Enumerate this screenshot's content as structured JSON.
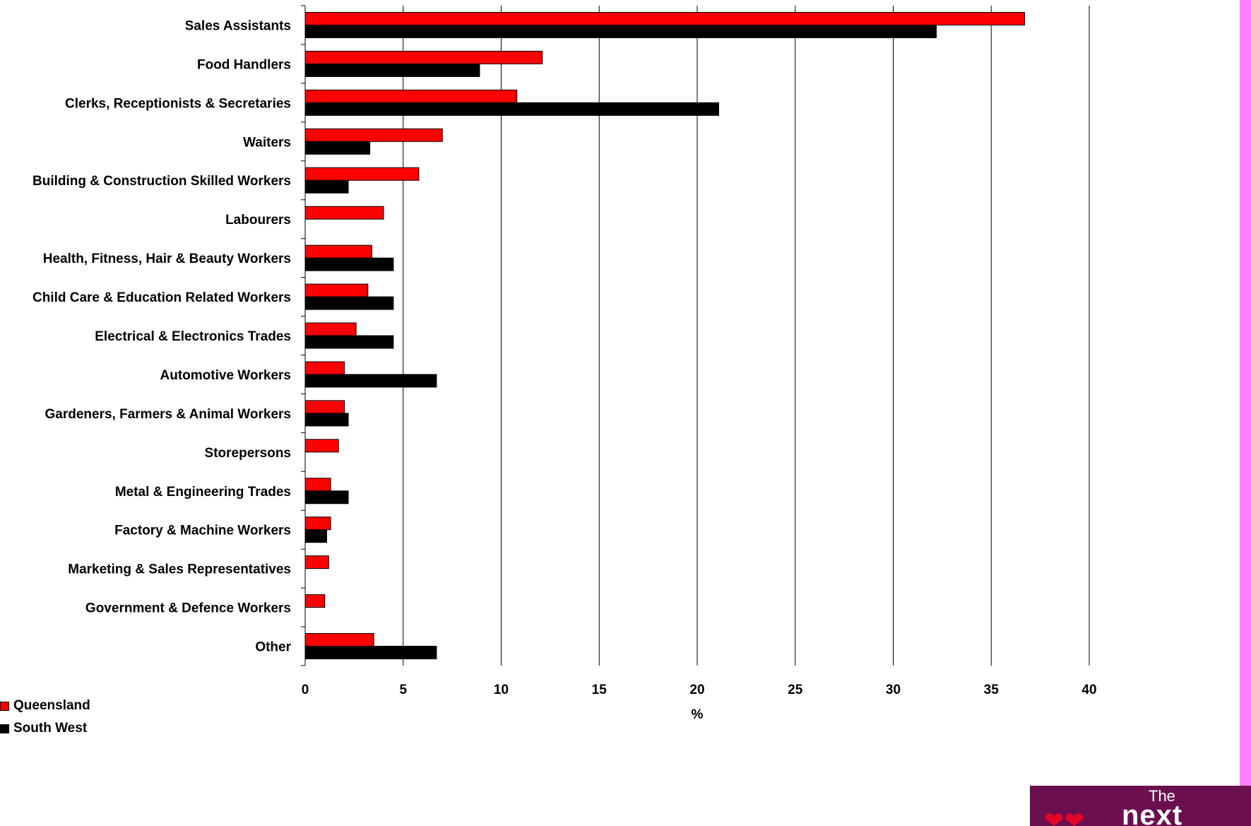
{
  "chart_data": {
    "type": "bar",
    "orientation": "horizontal",
    "categories": [
      "Sales Assistants",
      "Food Handlers",
      "Clerks, Receptionists & Secretaries",
      "Waiters",
      "Building & Construction Skilled Workers",
      "Labourers",
      "Health, Fitness, Hair & Beauty Workers",
      "Child Care & Education Related Workers",
      "Electrical & Electronics Trades",
      "Automotive Workers",
      "Gardeners, Farmers & Animal Workers",
      "Storepersons",
      "Metal & Engineering Trades",
      "Factory & Machine Workers",
      "Marketing & Sales Representatives",
      "Government & Defence Workers",
      "Other"
    ],
    "series": [
      {
        "name": "Queensland",
        "color": "#ff0000",
        "values": [
          36.7,
          12.1,
          10.8,
          7.0,
          5.8,
          4.0,
          3.4,
          3.2,
          2.6,
          2.0,
          2.0,
          1.7,
          1.3,
          1.3,
          1.2,
          1.0,
          3.5
        ]
      },
      {
        "name": "South West",
        "color": "#000000",
        "values": [
          32.2,
          8.9,
          21.1,
          3.3,
          2.2,
          0,
          4.5,
          4.5,
          4.5,
          6.7,
          2.2,
          0,
          2.2,
          1.1,
          0,
          0,
          6.7
        ]
      }
    ],
    "xlabel": "%",
    "xlim": [
      0,
      40
    ],
    "xticks": [
      0,
      5,
      10,
      15,
      20,
      25,
      30,
      35,
      40
    ],
    "grid": "vertical",
    "legend_position": "bottom-left"
  },
  "logo": {
    "the": "The",
    "next": "next",
    "bg_color": "#6b0f4e"
  },
  "accent_strip_color": "#ff80ff"
}
